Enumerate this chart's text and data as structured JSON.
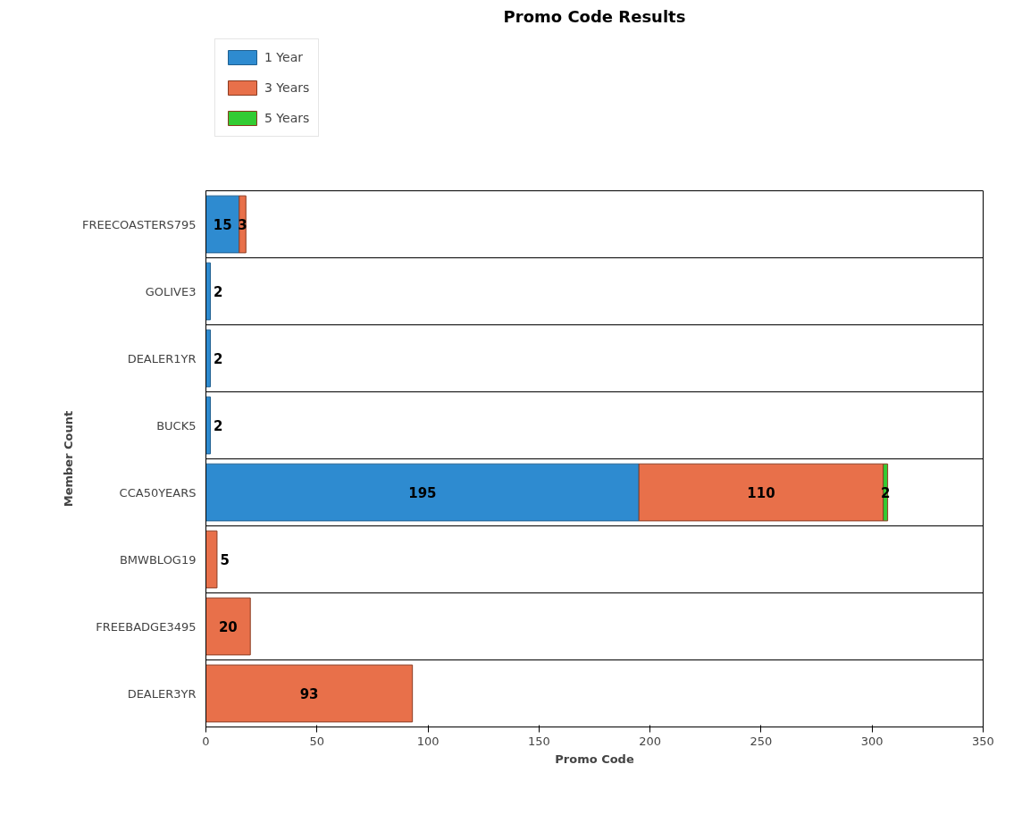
{
  "chart_data": {
    "type": "bar",
    "title": "Promo Code Results",
    "xlabel": "Promo Code",
    "ylabel": "Member Count",
    "orientation": "horizontal",
    "stacked": true,
    "data_labels": true,
    "legend": "top left",
    "grid": "y",
    "categories": [
      "FREECOASTERS795",
      "GOLIVE3",
      "DEALER1YR",
      "BUCK5",
      "CCA50YEARS",
      "BMWBLOG19",
      "FREEBADGE3495",
      "DEALER3YR"
    ],
    "series": [
      {
        "name": "1 Year",
        "color": "#2e8bd0",
        "values": [
          15,
          2,
          2,
          2,
          195,
          null,
          null,
          null
        ]
      },
      {
        "name": "3 Years",
        "color": "#e8704a",
        "values": [
          3,
          null,
          null,
          null,
          110,
          5,
          20,
          93
        ]
      },
      {
        "name": "5 Years",
        "color": "#33cc33",
        "values": [
          null,
          null,
          null,
          null,
          2,
          null,
          null,
          null
        ]
      }
    ],
    "xlim": [
      0,
      350
    ],
    "xticks": [
      0,
      50,
      100,
      150,
      200,
      250,
      300,
      350
    ]
  }
}
